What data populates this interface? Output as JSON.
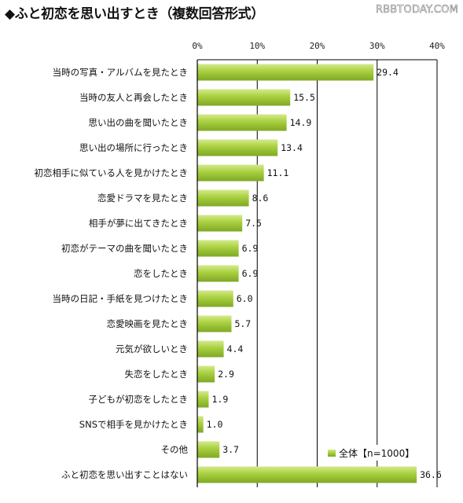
{
  "header": {
    "title": "◆ふと初恋を思い出すとき（複数回答形式）",
    "watermark": "RBBTODAY.COM"
  },
  "chart_data": {
    "type": "bar",
    "orientation": "horizontal",
    "categories": [
      "当時の写真・アルバムを見たとき",
      "当時の友人と再会したとき",
      "思い出の曲を聞いたとき",
      "思い出の場所に行ったとき",
      "初恋相手に似ている人を見かけたとき",
      "恋愛ドラマを見たとき",
      "相手が夢に出てきたとき",
      "初恋がテーマの曲を聞いたとき",
      "恋をしたとき",
      "当時の日記・手紙を見つけたとき",
      "恋愛映画を見たとき",
      "元気が欲しいとき",
      "失恋をしたとき",
      "子どもが初恋をしたとき",
      "SNSで相手を見かけたとき",
      "その他",
      "ふと初恋を思い出すことはない"
    ],
    "series": [
      {
        "name": "全体【n=1000】",
        "values": [
          29.4,
          15.5,
          14.9,
          13.4,
          11.1,
          8.6,
          7.5,
          6.9,
          6.9,
          6.0,
          5.7,
          4.4,
          2.9,
          1.9,
          1.0,
          3.7,
          36.6
        ],
        "labels": [
          "29.4",
          "15.5",
          "14.9",
          "13.4",
          "11.1",
          "8.6",
          "7.5",
          "6.9",
          "6.9",
          "6.0",
          "5.7",
          "4.4",
          "2.9",
          "1.9",
          "1.0",
          "3.7",
          "36.6"
        ]
      }
    ],
    "x_ticks": [
      0,
      10,
      20,
      30,
      40
    ],
    "x_tick_labels": [
      "0%",
      "10%",
      "20%",
      "30%",
      "40%"
    ],
    "xlim": [
      0,
      40
    ],
    "grid": true,
    "legend_position": "bottom-right",
    "colors": {
      "bar_fill": "#a8cf3d",
      "bar_highlight": "#d4ea8e",
      "bar_shadow": "#7fa826",
      "axis": "#000000"
    }
  }
}
